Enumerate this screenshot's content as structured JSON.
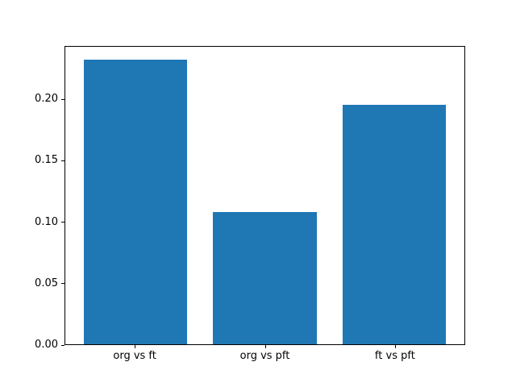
{
  "chart_data": {
    "type": "bar",
    "categories": [
      "org vs ft",
      "org vs pft",
      "ft vs pft"
    ],
    "values": [
      0.233,
      0.108,
      0.196
    ],
    "title": "",
    "xlabel": "",
    "ylabel": "",
    "ylim": [
      0,
      0.2435
    ],
    "yticks": [
      "0.00",
      "0.05",
      "0.10",
      "0.15",
      "0.20"
    ],
    "bar_color": "#1f77b4",
    "spine_color": "#000000",
    "background_color": "#ffffff",
    "grid": false,
    "legend": null
  }
}
